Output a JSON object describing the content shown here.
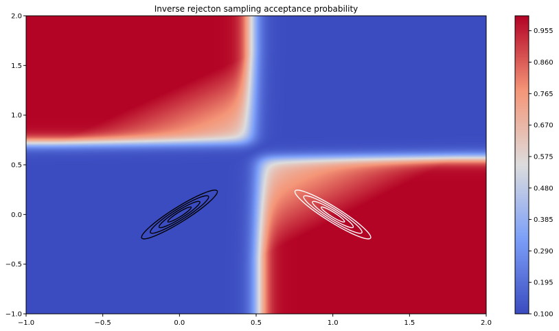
{
  "chart_data": {
    "type": "heatmap",
    "title": "Inverse rejecton sampling acceptance probability",
    "xlabel": "",
    "ylabel": "",
    "xlim": [
      -1.0,
      2.0
    ],
    "ylim": [
      -1.0,
      2.0
    ],
    "x_ticks": [
      "−1.0",
      "−0.5",
      "0.0",
      "0.5",
      "1.0",
      "1.5",
      "2.0"
    ],
    "y_ticks": [
      "−1.0",
      "−0.5",
      "0.0",
      "0.5",
      "1.0",
      "1.5",
      "2.0"
    ],
    "x_tick_values": [
      -1.0,
      -0.5,
      0.0,
      0.5,
      1.0,
      1.5,
      2.0
    ],
    "y_tick_values": [
      -1.0,
      -0.5,
      0.0,
      0.5,
      1.0,
      1.5,
      2.0
    ],
    "colormap": "coolwarm",
    "colorbar": {
      "min": 0.1,
      "max": 1.0,
      "ticks": [
        "0.100",
        "0.195",
        "0.290",
        "0.385",
        "0.480",
        "0.575",
        "0.670",
        "0.765",
        "0.860",
        "0.955"
      ],
      "tick_values": [
        0.1,
        0.195,
        0.29,
        0.385,
        0.48,
        0.575,
        0.67,
        0.765,
        0.86,
        0.955
      ]
    },
    "grid": false,
    "regions": [
      {
        "quadrant": "upper-left",
        "x_boundary": 0.47,
        "y_boundary": 0.72
      },
      {
        "quadrant": "lower-right",
        "x_boundary": 0.52,
        "y_boundary": 0.57
      }
    ],
    "contours": [
      {
        "color": "#000000",
        "center": [
          0.0,
          0.0
        ],
        "levels": 4,
        "angle_deg": 32
      },
      {
        "color": "#ffffff",
        "center": [
          1.0,
          0.0
        ],
        "levels": 4,
        "angle_deg": -32
      }
    ]
  }
}
